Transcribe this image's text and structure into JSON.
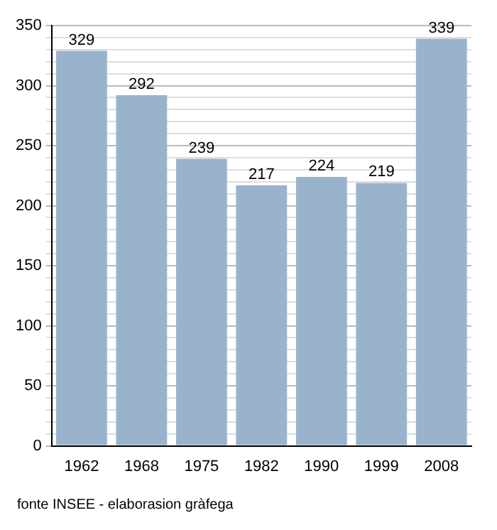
{
  "chart_data": {
    "type": "bar",
    "categories": [
      "1962",
      "1968",
      "1975",
      "1982",
      "1990",
      "1999",
      "2008"
    ],
    "values": [
      329,
      292,
      239,
      217,
      224,
      219,
      339
    ],
    "color": "#9ab3cc",
    "data_labels": true,
    "ylim": [
      0,
      350
    ],
    "yticks": [
      0,
      {
        "value": 10,
        "label": null
      },
      {
        "value": 20,
        "label": null
      },
      {
        "value": 30,
        "label": null
      },
      {
        "value": 40,
        "label": null
      },
      50,
      {
        "value": 60,
        "label": null
      },
      {
        "value": 70,
        "label": null
      },
      {
        "value": 80,
        "label": null
      },
      {
        "value": 90,
        "label": null
      },
      100,
      {
        "value": 110,
        "label": null
      },
      {
        "value": 120,
        "label": null
      },
      {
        "value": 130,
        "label": null
      },
      {
        "value": 140,
        "label": null
      },
      150,
      {
        "value": 160,
        "label": null
      },
      {
        "value": 170,
        "label": null
      },
      {
        "value": 180,
        "label": null
      },
      {
        "value": 190,
        "label": null
      },
      200,
      {
        "value": 210,
        "label": null
      },
      {
        "value": 220,
        "label": null
      },
      {
        "value": 230,
        "label": null
      },
      {
        "value": 240,
        "label": null
      },
      250,
      {
        "value": 260,
        "label": null
      },
      {
        "value": 270,
        "label": null
      },
      {
        "value": 280,
        "label": null
      },
      {
        "value": 290,
        "label": null
      },
      300,
      {
        "value": 310,
        "label": null
      },
      {
        "value": 320,
        "label": null
      },
      {
        "value": 330,
        "label": null
      },
      {
        "value": 340,
        "label": null
      },
      350
    ],
    "grid": "y",
    "legend": false,
    "annotations": [
      "fonte INSEE - elaborasion gràfega"
    ]
  }
}
